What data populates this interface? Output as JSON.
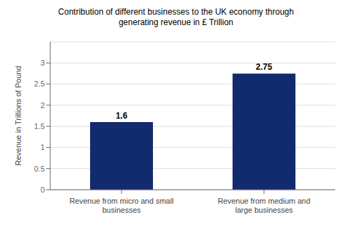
{
  "chart_data": {
    "type": "bar",
    "title": "Contribution of different businesses to the UK economy through\ngenerating revenue in £ Trillion",
    "categories": [
      "Revenue from micro and small\nbusinesses",
      "Revenue from medium and\nlarge businesses"
    ],
    "values": [
      1.6,
      2.75
    ],
    "color": "#122b6e",
    "ylabel": "Revenue in Trillions of Pound",
    "ylim": [
      0,
      3.5
    ],
    "yticks": [
      0,
      0.5,
      1,
      1.5,
      2,
      2.5,
      3
    ],
    "grid": true,
    "data_labels": true
  }
}
